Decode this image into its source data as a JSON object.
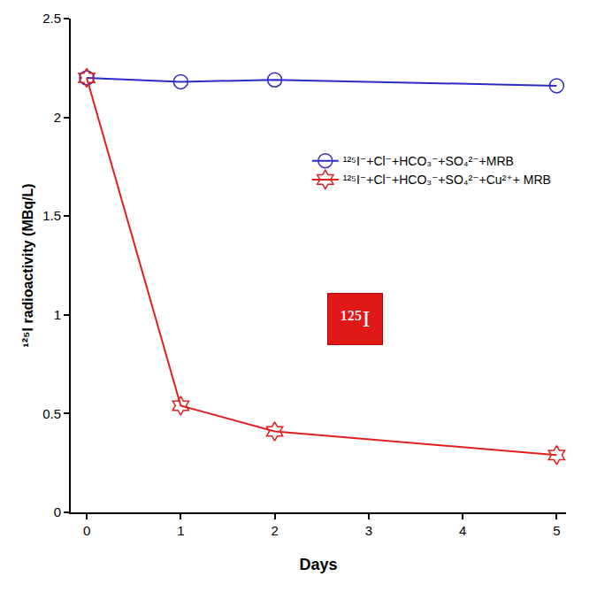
{
  "chart_data": {
    "type": "line",
    "x_label": "Days",
    "y_label": "¹²⁵I radioactivity (MBq/L)",
    "x": [
      0,
      1,
      2,
      5
    ],
    "series": [
      {
        "name": "¹²⁵I⁻+Cl⁻+HCO₃⁻+SO₄²⁻+MRB",
        "color": "#2b2bc8",
        "marker": "circle-open",
        "values": [
          2.2,
          2.18,
          2.19,
          2.16
        ]
      },
      {
        "name": "¹²⁵I⁻+Cl⁻+HCO₃⁻+SO₄²⁻+Cu²⁺+ MRB",
        "color": "#e02020",
        "marker": "hexagram-open",
        "values": [
          2.2,
          0.54,
          0.41,
          0.29
        ]
      }
    ],
    "xlim": [
      -0.17,
      5.1
    ],
    "xticks": [
      0,
      1,
      2,
      3,
      4,
      5
    ],
    "ylim": [
      0,
      2.5
    ],
    "yticks": [
      0,
      0.5,
      1,
      1.5,
      2,
      2.5
    ],
    "grid": false,
    "legend": "upper right",
    "annotations": [
      {
        "text": "¹²⁵I",
        "x": 2.86,
        "y": 0.98
      }
    ]
  }
}
